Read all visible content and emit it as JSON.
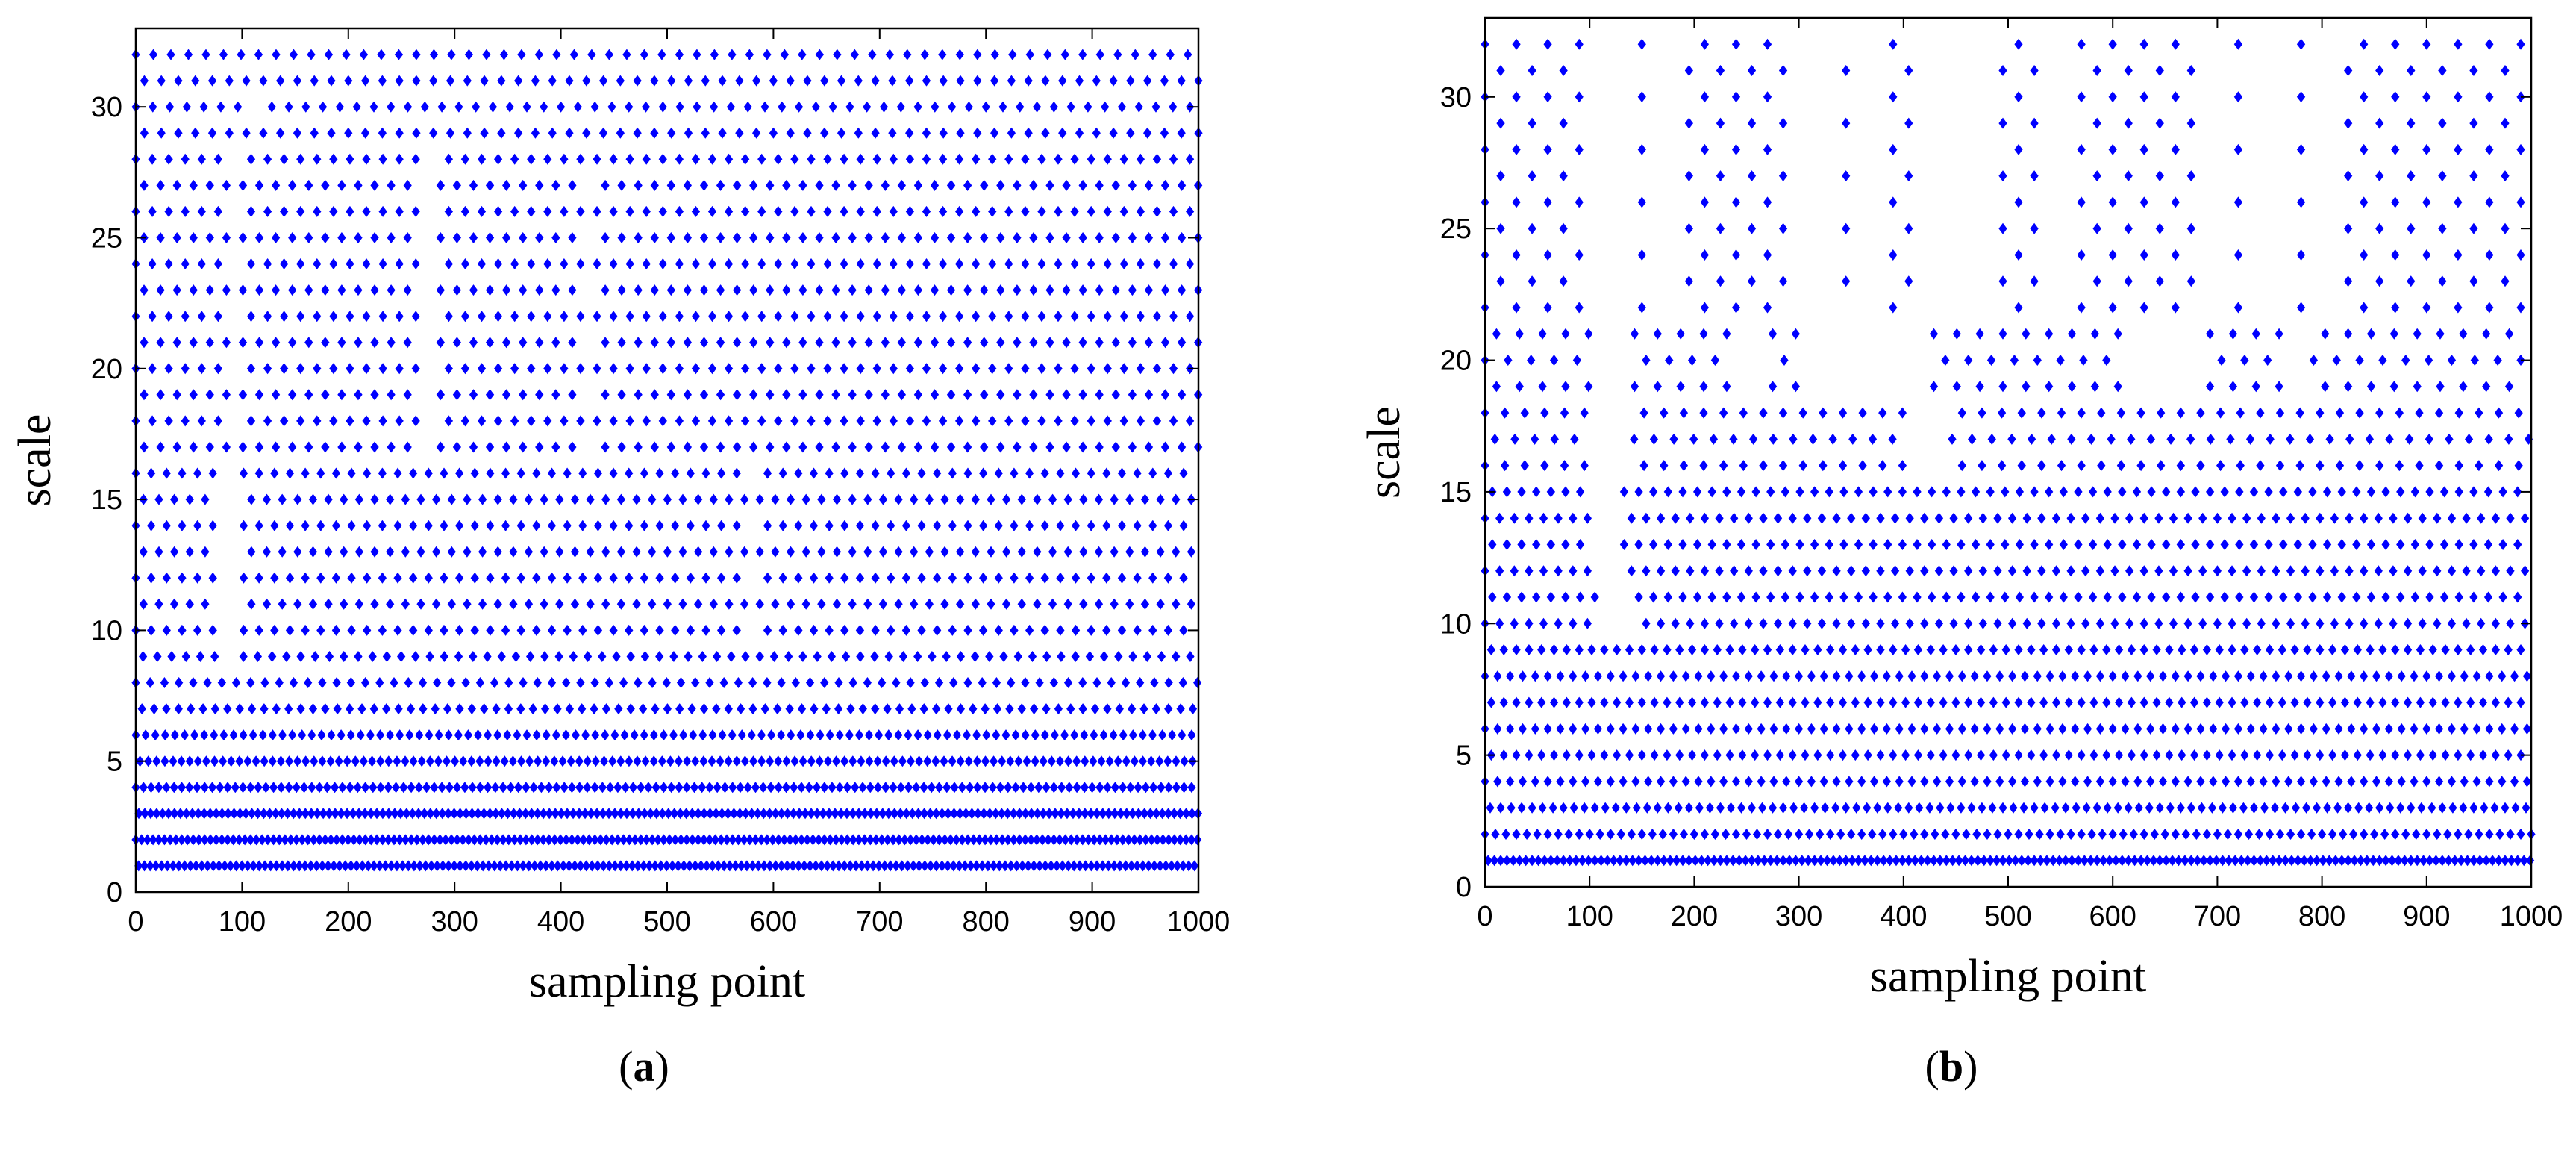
{
  "charts": [
    {
      "caption": "a",
      "chart_data": {
        "type": "scatter",
        "title": "",
        "xlabel": "sampling point",
        "ylabel": "scale",
        "xlim": [
          0,
          1000
        ],
        "ylim": [
          0,
          33
        ],
        "xticks": [
          0,
          100,
          200,
          300,
          400,
          500,
          600,
          700,
          800,
          900,
          1000
        ],
        "yticks": [
          0,
          5,
          10,
          15,
          20,
          25,
          30
        ],
        "grid": false,
        "marker": "diamond",
        "color": "#0000ff",
        "y_values": [
          1,
          2,
          3,
          4,
          5,
          6,
          7,
          8,
          9,
          10,
          11,
          12,
          13,
          14,
          15,
          16,
          17,
          18,
          19,
          20,
          21,
          22,
          23,
          24,
          25,
          26,
          27,
          28,
          29,
          30,
          31,
          32
        ],
        "rows": [
          {
            "scales": [
              1,
              1
            ],
            "step": 5.4,
            "gaps": []
          },
          {
            "scales": [
              2,
              2
            ],
            "step": 5.4,
            "gaps": []
          },
          {
            "scales": [
              3,
              3
            ],
            "step": 5.6,
            "gaps": []
          },
          {
            "scales": [
              4,
              4
            ],
            "step": 7.2,
            "gaps": []
          },
          {
            "scales": [
              5,
              5
            ],
            "step": 7.8,
            "gaps": []
          },
          {
            "scales": [
              6,
              6
            ],
            "step": 9.2,
            "gaps": []
          },
          {
            "scales": [
              7,
              7
            ],
            "step": 11.5,
            "gaps": []
          },
          {
            "scales": [
              8,
              9
            ],
            "step": 13.5,
            "gaps": [
              [
                85,
                90
              ]
            ]
          },
          {
            "scales": [
              10,
              16
            ],
            "step": 14.5,
            "gaps": [
              [
                78,
                95
              ],
              [
                575,
                582
              ]
            ]
          },
          {
            "scales": [
              17,
              28
            ],
            "step": 15.5,
            "gaps": [
              [
                88,
                96
              ],
              [
                268,
                282
              ],
              [
                425,
                432
              ]
            ]
          },
          {
            "scales": [
              29,
              31
            ],
            "step": 16,
            "gaps": [
              [
                105,
                112
              ]
            ]
          },
          {
            "scales": [
              32,
              32
            ],
            "step": 16.5,
            "gaps": []
          }
        ]
      }
    },
    {
      "caption": "b",
      "chart_data": {
        "type": "scatter",
        "title": "",
        "xlabel": "sampling point",
        "ylabel": "scale",
        "xlim": [
          0,
          1000
        ],
        "ylim": [
          0,
          33
        ],
        "xticks": [
          0,
          100,
          200,
          300,
          400,
          500,
          600,
          700,
          800,
          900,
          1000
        ],
        "yticks": [
          0,
          5,
          10,
          15,
          20,
          25,
          30
        ],
        "grid": false,
        "marker": "diamond",
        "color": "#0000ff",
        "y_values": [
          1,
          2,
          3,
          4,
          5,
          6,
          7,
          8,
          9,
          10,
          11,
          12,
          13,
          14,
          15,
          16,
          17,
          18,
          19,
          20,
          21,
          22,
          23,
          24,
          25,
          26,
          27,
          28,
          29,
          30,
          31,
          32
        ],
        "rows": [
          {
            "scales": [
              1,
              1
            ],
            "step": 6,
            "gaps": []
          },
          {
            "scales": [
              2,
              3
            ],
            "step": 10,
            "gaps": []
          },
          {
            "scales": [
              4,
              9
            ],
            "step": 12,
            "gaps": []
          },
          {
            "scales": [
              10,
              11
            ],
            "step": 14,
            "gaps": [
              [
                110,
                140
              ]
            ]
          },
          {
            "scales": [
              12,
              15
            ],
            "step": 14,
            "gaps": [
              [
                100,
                130
              ]
            ]
          },
          {
            "scales": [
              16,
              18
            ],
            "step": 19,
            "gaps": [
              [
                100,
                135
              ],
              [
                405,
                440
              ]
            ]
          },
          {
            "scales": [
              19,
              21
            ],
            "step": 22,
            "gaps": [
              [
                100,
                140
              ],
              [
                240,
                265
              ],
              [
                300,
                420
              ],
              [
                610,
                690
              ],
              [
                760,
                790
              ]
            ]
          },
          {
            "scales": [
              22,
              32
            ],
            "step": 30,
            "gaps": [
              [
                100,
                140
              ],
              [
                160,
                180
              ],
              [
                290,
                330
              ],
              [
                350,
                380
              ],
              [
                410,
                490
              ],
              [
                540,
                560
              ],
              [
                690,
                710
              ],
              [
                735,
                770
              ],
              [
                790,
                815
              ]
            ]
          }
        ]
      }
    }
  ]
}
